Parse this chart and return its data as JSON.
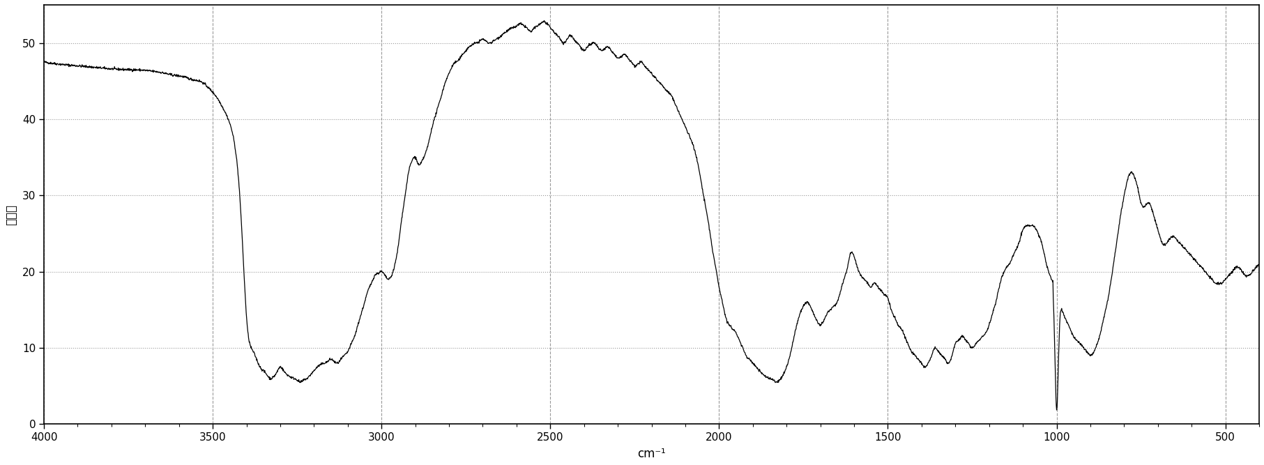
{
  "title": "",
  "xlabel": "cm⁻¹",
  "ylabel": "透过率",
  "xlim": [
    4000,
    400
  ],
  "ylim": [
    0,
    55
  ],
  "yticks": [
    0,
    10,
    20,
    30,
    40,
    50
  ],
  "xticks": [
    4000,
    3500,
    3000,
    2500,
    2000,
    1500,
    1000,
    500
  ],
  "bg_color": "#ffffff",
  "line_color": "#000000",
  "grid_color": "#999999",
  "keypoints": [
    [
      4000,
      47.5
    ],
    [
      3950,
      47.2
    ],
    [
      3900,
      47.0
    ],
    [
      3850,
      46.8
    ],
    [
      3800,
      46.6
    ],
    [
      3750,
      46.5
    ],
    [
      3700,
      46.4
    ],
    [
      3680,
      46.3
    ],
    [
      3650,
      46.1
    ],
    [
      3620,
      45.8
    ],
    [
      3590,
      45.6
    ],
    [
      3560,
      45.2
    ],
    [
      3530,
      44.8
    ],
    [
      3510,
      44.0
    ],
    [
      3490,
      43.0
    ],
    [
      3470,
      41.5
    ],
    [
      3450,
      39.5
    ],
    [
      3430,
      35.0
    ],
    [
      3420,
      30.0
    ],
    [
      3410,
      22.0
    ],
    [
      3400,
      14.0
    ],
    [
      3390,
      10.5
    ],
    [
      3380,
      9.5
    ],
    [
      3370,
      8.5
    ],
    [
      3360,
      7.5
    ],
    [
      3350,
      7.0
    ],
    [
      3340,
      6.5
    ],
    [
      3330,
      6.0
    ],
    [
      3320,
      6.2
    ],
    [
      3310,
      6.8
    ],
    [
      3300,
      7.5
    ],
    [
      3290,
      7.0
    ],
    [
      3280,
      6.5
    ],
    [
      3270,
      6.2
    ],
    [
      3260,
      6.0
    ],
    [
      3250,
      5.8
    ],
    [
      3240,
      5.5
    ],
    [
      3230,
      5.8
    ],
    [
      3220,
      6.0
    ],
    [
      3210,
      6.5
    ],
    [
      3200,
      7.0
    ],
    [
      3190,
      7.5
    ],
    [
      3180,
      7.8
    ],
    [
      3170,
      8.0
    ],
    [
      3160,
      8.2
    ],
    [
      3150,
      8.5
    ],
    [
      3140,
      8.2
    ],
    [
      3130,
      8.0
    ],
    [
      3120,
      8.5
    ],
    [
      3110,
      9.0
    ],
    [
      3100,
      9.5
    ],
    [
      3090,
      10.5
    ],
    [
      3080,
      11.5
    ],
    [
      3070,
      13.0
    ],
    [
      3060,
      14.5
    ],
    [
      3050,
      16.0
    ],
    [
      3040,
      17.5
    ],
    [
      3030,
      18.5
    ],
    [
      3020,
      19.5
    ],
    [
      3010,
      19.8
    ],
    [
      3000,
      20.0
    ],
    [
      2990,
      19.5
    ],
    [
      2980,
      19.0
    ],
    [
      2970,
      19.5
    ],
    [
      2960,
      21.0
    ],
    [
      2950,
      23.5
    ],
    [
      2940,
      27.0
    ],
    [
      2930,
      30.0
    ],
    [
      2920,
      33.0
    ],
    [
      2910,
      34.5
    ],
    [
      2900,
      35.0
    ],
    [
      2890,
      34.0
    ],
    [
      2880,
      34.5
    ],
    [
      2870,
      35.5
    ],
    [
      2860,
      37.0
    ],
    [
      2850,
      39.0
    ],
    [
      2840,
      40.5
    ],
    [
      2830,
      42.0
    ],
    [
      2820,
      43.5
    ],
    [
      2810,
      45.0
    ],
    [
      2800,
      46.0
    ],
    [
      2790,
      47.0
    ],
    [
      2780,
      47.5
    ],
    [
      2770,
      47.8
    ],
    [
      2760,
      48.5
    ],
    [
      2750,
      49.0
    ],
    [
      2740,
      49.5
    ],
    [
      2730,
      49.8
    ],
    [
      2720,
      50.0
    ],
    [
      2710,
      50.2
    ],
    [
      2700,
      50.5
    ],
    [
      2690,
      50.2
    ],
    [
      2680,
      50.0
    ],
    [
      2670,
      50.2
    ],
    [
      2660,
      50.5
    ],
    [
      2650,
      50.8
    ],
    [
      2640,
      51.2
    ],
    [
      2630,
      51.5
    ],
    [
      2620,
      51.8
    ],
    [
      2610,
      52.0
    ],
    [
      2600,
      52.2
    ],
    [
      2590,
      52.5
    ],
    [
      2580,
      52.3
    ],
    [
      2570,
      52.0
    ],
    [
      2560,
      51.5
    ],
    [
      2550,
      51.8
    ],
    [
      2540,
      52.2
    ],
    [
      2530,
      52.5
    ],
    [
      2520,
      52.8
    ],
    [
      2510,
      52.5
    ],
    [
      2500,
      52.0
    ],
    [
      2490,
      51.5
    ],
    [
      2480,
      51.0
    ],
    [
      2470,
      50.5
    ],
    [
      2460,
      50.0
    ],
    [
      2450,
      50.5
    ],
    [
      2440,
      51.0
    ],
    [
      2430,
      50.5
    ],
    [
      2420,
      50.0
    ],
    [
      2410,
      49.5
    ],
    [
      2400,
      49.0
    ],
    [
      2390,
      49.5
    ],
    [
      2380,
      49.8
    ],
    [
      2370,
      50.0
    ],
    [
      2360,
      49.5
    ],
    [
      2350,
      49.0
    ],
    [
      2340,
      49.2
    ],
    [
      2330,
      49.5
    ],
    [
      2320,
      49.0
    ],
    [
      2310,
      48.5
    ],
    [
      2300,
      48.0
    ],
    [
      2290,
      48.2
    ],
    [
      2280,
      48.5
    ],
    [
      2270,
      48.0
    ],
    [
      2260,
      47.5
    ],
    [
      2250,
      47.0
    ],
    [
      2240,
      47.2
    ],
    [
      2230,
      47.5
    ],
    [
      2220,
      47.0
    ],
    [
      2210,
      46.5
    ],
    [
      2200,
      46.0
    ],
    [
      2190,
      45.5
    ],
    [
      2180,
      45.0
    ],
    [
      2170,
      44.5
    ],
    [
      2160,
      44.0
    ],
    [
      2150,
      43.5
    ],
    [
      2140,
      43.0
    ],
    [
      2130,
      42.0
    ],
    [
      2120,
      41.0
    ],
    [
      2110,
      40.0
    ],
    [
      2100,
      39.0
    ],
    [
      2090,
      38.0
    ],
    [
      2080,
      37.0
    ],
    [
      2070,
      35.5
    ],
    [
      2060,
      33.5
    ],
    [
      2050,
      31.0
    ],
    [
      2040,
      28.5
    ],
    [
      2030,
      26.0
    ],
    [
      2020,
      23.0
    ],
    [
      2010,
      20.5
    ],
    [
      2000,
      18.0
    ],
    [
      1990,
      16.0
    ],
    [
      1980,
      14.0
    ],
    [
      1970,
      13.0
    ],
    [
      1960,
      12.5
    ],
    [
      1950,
      12.0
    ],
    [
      1940,
      11.0
    ],
    [
      1930,
      10.0
    ],
    [
      1920,
      9.0
    ],
    [
      1910,
      8.5
    ],
    [
      1900,
      8.0
    ],
    [
      1890,
      7.5
    ],
    [
      1880,
      7.0
    ],
    [
      1870,
      6.5
    ],
    [
      1860,
      6.2
    ],
    [
      1850,
      6.0
    ],
    [
      1840,
      5.8
    ],
    [
      1830,
      5.5
    ],
    [
      1820,
      5.8
    ],
    [
      1810,
      6.5
    ],
    [
      1800,
      7.5
    ],
    [
      1790,
      9.0
    ],
    [
      1780,
      11.0
    ],
    [
      1770,
      13.0
    ],
    [
      1760,
      14.5
    ],
    [
      1750,
      15.5
    ],
    [
      1740,
      16.0
    ],
    [
      1730,
      15.5
    ],
    [
      1720,
      14.5
    ],
    [
      1710,
      13.5
    ],
    [
      1700,
      13.0
    ],
    [
      1690,
      13.5
    ],
    [
      1680,
      14.5
    ],
    [
      1670,
      15.0
    ],
    [
      1660,
      15.5
    ],
    [
      1650,
      16.0
    ],
    [
      1640,
      17.5
    ],
    [
      1630,
      19.0
    ],
    [
      1620,
      20.5
    ],
    [
      1610,
      22.5
    ],
    [
      1600,
      22.0
    ],
    [
      1590,
      20.5
    ],
    [
      1580,
      19.5
    ],
    [
      1570,
      19.0
    ],
    [
      1560,
      18.5
    ],
    [
      1550,
      18.0
    ],
    [
      1540,
      18.5
    ],
    [
      1530,
      18.0
    ],
    [
      1520,
      17.5
    ],
    [
      1510,
      17.0
    ],
    [
      1500,
      16.5
    ],
    [
      1490,
      15.0
    ],
    [
      1480,
      14.0
    ],
    [
      1470,
      13.0
    ],
    [
      1460,
      12.5
    ],
    [
      1450,
      11.5
    ],
    [
      1440,
      10.5
    ],
    [
      1430,
      9.5
    ],
    [
      1420,
      9.0
    ],
    [
      1410,
      8.5
    ],
    [
      1400,
      8.0
    ],
    [
      1390,
      7.5
    ],
    [
      1380,
      8.0
    ],
    [
      1370,
      9.0
    ],
    [
      1360,
      10.0
    ],
    [
      1350,
      9.5
    ],
    [
      1340,
      9.0
    ],
    [
      1330,
      8.5
    ],
    [
      1320,
      8.0
    ],
    [
      1310,
      9.0
    ],
    [
      1300,
      10.5
    ],
    [
      1290,
      11.0
    ],
    [
      1280,
      11.5
    ],
    [
      1270,
      11.0
    ],
    [
      1260,
      10.5
    ],
    [
      1250,
      10.0
    ],
    [
      1240,
      10.5
    ],
    [
      1230,
      11.0
    ],
    [
      1220,
      11.5
    ],
    [
      1210,
      12.0
    ],
    [
      1200,
      13.0
    ],
    [
      1190,
      14.5
    ],
    [
      1180,
      16.0
    ],
    [
      1170,
      18.0
    ],
    [
      1160,
      19.5
    ],
    [
      1150,
      20.5
    ],
    [
      1140,
      21.0
    ],
    [
      1130,
      22.0
    ],
    [
      1120,
      23.0
    ],
    [
      1110,
      24.0
    ],
    [
      1100,
      25.5
    ],
    [
      1090,
      26.0
    ],
    [
      1080,
      26.0
    ],
    [
      1070,
      26.0
    ],
    [
      1060,
      25.5
    ],
    [
      1050,
      24.5
    ],
    [
      1040,
      23.0
    ],
    [
      1030,
      21.0
    ],
    [
      1020,
      19.5
    ],
    [
      1010,
      18.5
    ],
    [
      1000,
      17.0
    ],
    [
      990,
      16.0
    ],
    [
      980,
      14.5
    ],
    [
      970,
      13.5
    ],
    [
      960,
      12.5
    ],
    [
      950,
      11.5
    ],
    [
      940,
      11.0
    ],
    [
      930,
      10.5
    ],
    [
      920,
      10.0
    ],
    [
      910,
      9.5
    ],
    [
      900,
      9.0
    ],
    [
      890,
      9.5
    ],
    [
      880,
      10.5
    ],
    [
      870,
      12.0
    ],
    [
      860,
      14.0
    ],
    [
      850,
      16.0
    ],
    [
      840,
      18.5
    ],
    [
      830,
      21.5
    ],
    [
      820,
      24.5
    ],
    [
      810,
      27.5
    ],
    [
      800,
      30.0
    ],
    [
      790,
      32.0
    ],
    [
      780,
      33.0
    ],
    [
      770,
      32.5
    ],
    [
      760,
      31.0
    ],
    [
      750,
      29.0
    ],
    [
      740,
      28.5
    ],
    [
      730,
      29.0
    ],
    [
      720,
      28.5
    ],
    [
      710,
      27.0
    ],
    [
      700,
      25.5
    ],
    [
      690,
      24.0
    ],
    [
      680,
      23.5
    ],
    [
      670,
      24.0
    ],
    [
      660,
      24.5
    ],
    [
      650,
      24.5
    ],
    [
      640,
      24.0
    ],
    [
      630,
      23.5
    ],
    [
      620,
      23.0
    ],
    [
      610,
      22.5
    ],
    [
      600,
      22.0
    ],
    [
      590,
      21.5
    ],
    [
      580,
      21.0
    ],
    [
      570,
      20.5
    ],
    [
      560,
      20.0
    ],
    [
      550,
      19.5
    ],
    [
      540,
      19.0
    ],
    [
      530,
      18.5
    ],
    [
      520,
      18.5
    ],
    [
      510,
      18.5
    ],
    [
      500,
      19.0
    ],
    [
      490,
      19.5
    ],
    [
      480,
      20.0
    ],
    [
      470,
      20.5
    ],
    [
      460,
      20.5
    ],
    [
      450,
      20.0
    ],
    [
      440,
      19.5
    ],
    [
      430,
      19.5
    ],
    [
      420,
      20.0
    ],
    [
      410,
      20.5
    ],
    [
      400,
      21.0
    ]
  ]
}
